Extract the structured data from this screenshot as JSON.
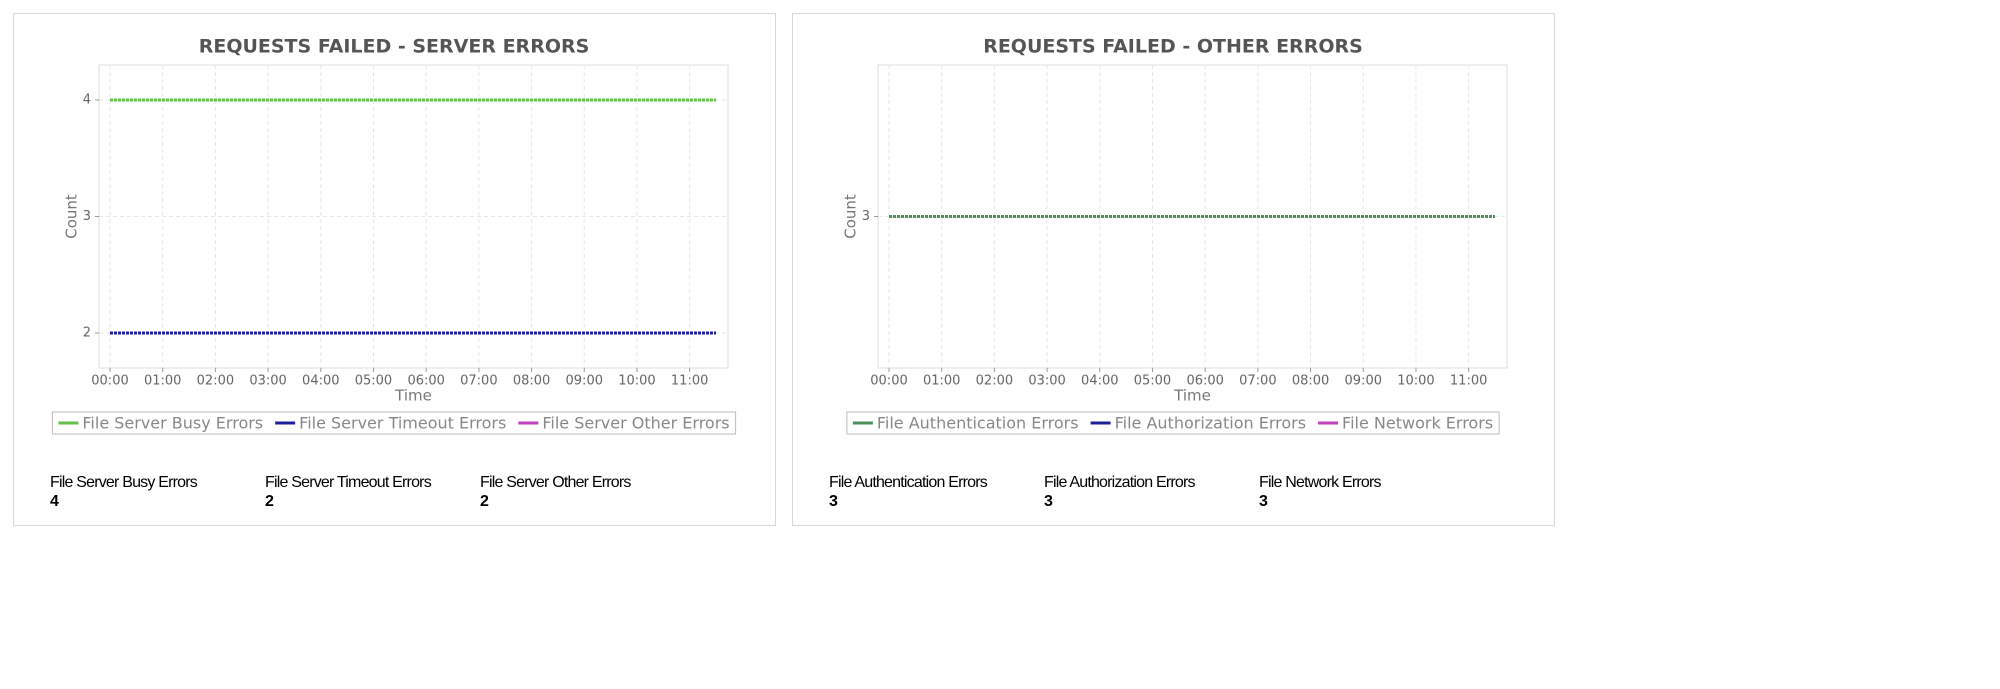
{
  "chart_data": [
    {
      "type": "line",
      "title": "REQUESTS FAILED - SERVER ERRORS",
      "x_label": "Time",
      "y_label": "Count",
      "x": [
        "00:00",
        "00:30",
        "01:00",
        "01:30",
        "02:00",
        "02:30",
        "03:00",
        "03:30",
        "04:00",
        "04:30",
        "05:00",
        "05:30",
        "06:00",
        "06:30",
        "07:00",
        "07:30",
        "08:00",
        "08:30",
        "09:00",
        "09:30",
        "10:00",
        "10:30",
        "11:00",
        "11:30"
      ],
      "xticks": [
        "00:00",
        "01:00",
        "02:00",
        "03:00",
        "04:00",
        "05:00",
        "06:00",
        "07:00",
        "08:00",
        "09:00",
        "10:00",
        "11:00"
      ],
      "ylim": [
        1.7,
        4.3
      ],
      "yticks": [
        2,
        3,
        4
      ],
      "grid": true,
      "series": [
        {
          "name": "File Server Busy Errors",
          "color": "#66c04a",
          "values": [
            4,
            4,
            4,
            4,
            4,
            4,
            4,
            4,
            4,
            4,
            4,
            4,
            4,
            4,
            4,
            4,
            4,
            4,
            4,
            4,
            4,
            4,
            4,
            4
          ]
        },
        {
          "name": "File Server Timeout Errors",
          "color": "#1f1f9e",
          "values": [
            2,
            2,
            2,
            2,
            2,
            2,
            2,
            2,
            2,
            2,
            2,
            2,
            2,
            2,
            2,
            2,
            2,
            2,
            2,
            2,
            2,
            2,
            2,
            2
          ]
        },
        {
          "name": "File Server Other Errors",
          "color": "#c040c0",
          "values": [
            2,
            2,
            2,
            2,
            2,
            2,
            2,
            2,
            2,
            2,
            2,
            2,
            2,
            2,
            2,
            2,
            2,
            2,
            2,
            2,
            2,
            2,
            2,
            2
          ]
        }
      ],
      "summary": [
        {
          "label": "File Server Busy Errors",
          "value": 4
        },
        {
          "label": "File Server Timeout Errors",
          "value": 2
        },
        {
          "label": "File Server Other Errors",
          "value": 2
        }
      ]
    },
    {
      "type": "line",
      "title": "REQUESTS FAILED - OTHER ERRORS",
      "x_label": "Time",
      "y_label": "Count",
      "x": [
        "00:00",
        "00:30",
        "01:00",
        "01:30",
        "02:00",
        "02:30",
        "03:00",
        "03:30",
        "04:00",
        "04:30",
        "05:00",
        "05:30",
        "06:00",
        "06:30",
        "07:00",
        "07:30",
        "08:00",
        "08:30",
        "09:00",
        "09:30",
        "10:00",
        "10:30",
        "11:00",
        "11:30"
      ],
      "xticks": [
        "00:00",
        "01:00",
        "02:00",
        "03:00",
        "04:00",
        "05:00",
        "06:00",
        "07:00",
        "08:00",
        "09:00",
        "10:00",
        "11:00"
      ],
      "ylim": [
        1.7,
        4.3
      ],
      "yticks": [
        3
      ],
      "grid": true,
      "series": [
        {
          "name": "File Authentication Errors",
          "color": "#4f8f5a",
          "values": [
            3,
            3,
            3,
            3,
            3,
            3,
            3,
            3,
            3,
            3,
            3,
            3,
            3,
            3,
            3,
            3,
            3,
            3,
            3,
            3,
            3,
            3,
            3,
            3
          ]
        },
        {
          "name": "File Authorization Errors",
          "color": "#1f1f9e",
          "values": [
            3,
            3,
            3,
            3,
            3,
            3,
            3,
            3,
            3,
            3,
            3,
            3,
            3,
            3,
            3,
            3,
            3,
            3,
            3,
            3,
            3,
            3,
            3,
            3
          ]
        },
        {
          "name": "File Network Errors",
          "color": "#c040c0",
          "values": [
            3,
            3,
            3,
            3,
            3,
            3,
            3,
            3,
            3,
            3,
            3,
            3,
            3,
            3,
            3,
            3,
            3,
            3,
            3,
            3,
            3,
            3,
            3,
            3
          ]
        }
      ],
      "summary": [
        {
          "label": "File Authentication Errors",
          "value": 3
        },
        {
          "label": "File Authorization Errors",
          "value": 3
        },
        {
          "label": "File Network Errors",
          "value": 3
        }
      ]
    }
  ]
}
